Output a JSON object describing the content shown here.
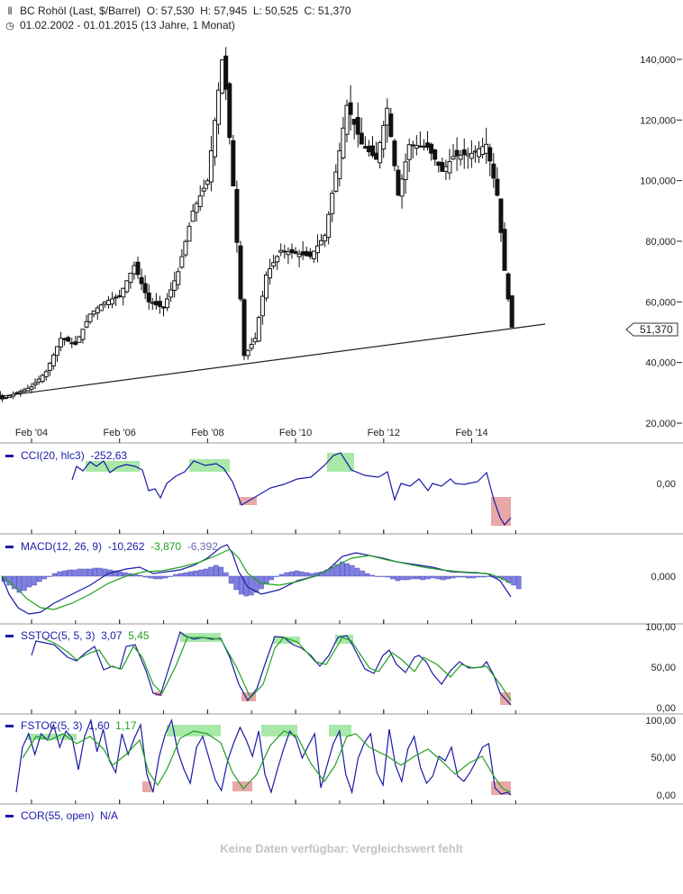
{
  "header": {
    "icon_chart": "candlestick-icon",
    "title": "BC Rohöl (Last, $/Barrel)",
    "ohlc": "O: 57,530  H: 57,945  L: 50,525  C: 51,370",
    "icon_clock": "clock-icon",
    "range": "01.02.2002 - 01.01.2015 (13 Jahre, 1 Monat)"
  },
  "last_price_label": "51,370",
  "indicators": {
    "cci": {
      "name": "CCI(20, hlc3)",
      "v1": "-252,63",
      "axis": [
        "0,00"
      ]
    },
    "macd": {
      "name": "MACD(12, 26, 9)",
      "v1": "-10,262",
      "v2": "-3,870",
      "v3": "-6,392",
      "axis": [
        "0,000"
      ]
    },
    "sstoc": {
      "name": "SSTOC(5, 5, 3)",
      "v1": "3,07",
      "v2": "5,45",
      "axis": [
        "100,00",
        "50,00",
        "0,00"
      ]
    },
    "fstoc": {
      "name": "FSTOC(5, 3)",
      "v1": "1,60",
      "v2": "1,17",
      "axis": [
        "100,00",
        "50,00",
        "0,00"
      ]
    },
    "cor": {
      "name": "COR(55, open)",
      "v1": "N/A"
    }
  },
  "no_data_message": "Keine Daten verfügbar: Vergleichswert fehlt",
  "colors": {
    "indicator_line": "#1a1aa6",
    "signal_line": "#22a022",
    "overbought_fill": "#a8e8a8",
    "oversold_fill": "#e8a8a8",
    "histogram": "#8080e0"
  },
  "chart_data": {
    "type": "candlestick",
    "title": "BC Rohöl (Last, $/Barrel)",
    "xlabel": "",
    "ylabel": "$/Barrel",
    "x_ticks": [
      "Feb '04",
      "Feb '06",
      "Feb '08",
      "Feb '10",
      "Feb '12",
      "Feb '14"
    ],
    "y_ticks": [
      "20,000",
      "40,000",
      "60,000",
      "80,000",
      "100,000",
      "120,000",
      "140,000"
    ],
    "ylim": [
      16,
      146
    ],
    "last": {
      "open": 57.53,
      "high": 57.945,
      "low": 50.525,
      "close": 51.37
    },
    "trendline": {
      "start": {
        "date": "2002-03",
        "value": 26.5
      },
      "end": {
        "date": "2015-04",
        "value": 53.5
      }
    },
    "monthly_close": [
      [
        "2002-02",
        27
      ],
      [
        "2002-06",
        26
      ],
      [
        "2002-10",
        28
      ],
      [
        "2003-02",
        32
      ],
      [
        "2003-06",
        28
      ],
      [
        "2003-10",
        30
      ],
      [
        "2004-02",
        32
      ],
      [
        "2004-06",
        37
      ],
      [
        "2004-10",
        48
      ],
      [
        "2005-02",
        46
      ],
      [
        "2005-06",
        56
      ],
      [
        "2005-10",
        60
      ],
      [
        "2006-02",
        62
      ],
      [
        "2006-06",
        72
      ],
      [
        "2006-10",
        60
      ],
      [
        "2007-02",
        58
      ],
      [
        "2007-06",
        70
      ],
      [
        "2007-10",
        90
      ],
      [
        "2008-02",
        100
      ],
      [
        "2008-06",
        140
      ],
      [
        "2008-07",
        130
      ],
      [
        "2008-09",
        98
      ],
      [
        "2008-12",
        42
      ],
      [
        "2009-03",
        48
      ],
      [
        "2009-06",
        69
      ],
      [
        "2009-10",
        77
      ],
      [
        "2010-02",
        76
      ],
      [
        "2010-06",
        75
      ],
      [
        "2010-10",
        82
      ],
      [
        "2011-02",
        110
      ],
      [
        "2011-04",
        125
      ],
      [
        "2011-08",
        112
      ],
      [
        "2011-12",
        107
      ],
      [
        "2012-03",
        124
      ],
      [
        "2012-06",
        95
      ],
      [
        "2012-09",
        112
      ],
      [
        "2013-02",
        111
      ],
      [
        "2013-06",
        103
      ],
      [
        "2013-09",
        108
      ],
      [
        "2014-02",
        109
      ],
      [
        "2014-06",
        112
      ],
      [
        "2014-09",
        95
      ],
      [
        "2014-11",
        70
      ],
      [
        "2015-01",
        51.37
      ]
    ],
    "sub_panels": [
      {
        "name": "CCI(20, hlc3)",
        "last": -252.63
      },
      {
        "name": "MACD(12, 26, 9)",
        "macd": -10.262,
        "signal": -3.87,
        "histogram": -6.392
      },
      {
        "name": "SSTOC(5, 5, 3)",
        "k": 3.07,
        "d": 5.45,
        "ylim": [
          0,
          100
        ]
      },
      {
        "name": "FSTOC(5, 3)",
        "k": 1.6,
        "d": 1.17,
        "ylim": [
          0,
          100
        ]
      },
      {
        "name": "COR(55, open)",
        "value": "N/A"
      }
    ]
  }
}
